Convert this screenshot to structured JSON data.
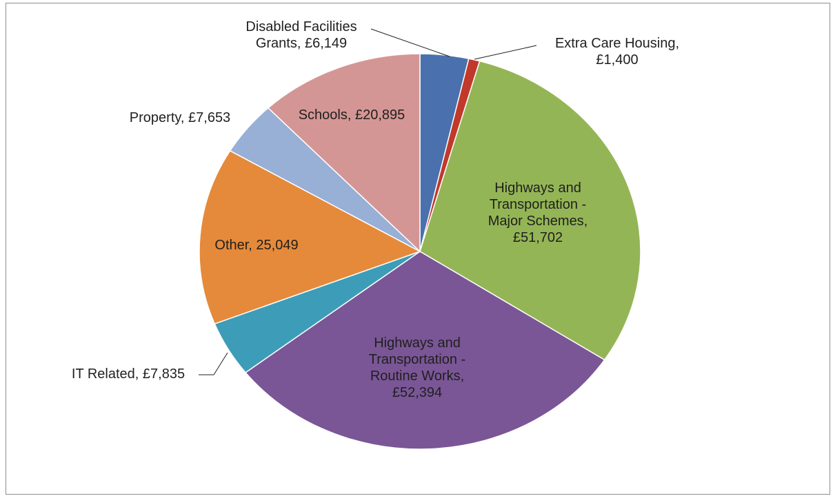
{
  "chart_data": {
    "type": "pie",
    "slices": [
      {
        "name": "Disabled Facilities Grants",
        "value": 6149,
        "color": "#4a71ad",
        "label_lines": [
          "Disabled Facilities",
          "Grants, £6,149"
        ]
      },
      {
        "name": "Extra Care Housing",
        "value": 1400,
        "color": "#c0392b",
        "label_lines": [
          "Extra Care Housing,",
          "£1,400"
        ]
      },
      {
        "name": "Highways and Transportation - Major Schemes",
        "value": 51702,
        "color": "#94b555",
        "label_lines": [
          "Highways and",
          "Transportation -",
          "Major Schemes,",
          "£51,702"
        ]
      },
      {
        "name": "Highways and Transportation - Routine Works",
        "value": 52394,
        "color": "#7a5696",
        "label_lines": [
          "Highways and",
          "Transportation -",
          "Routine Works,",
          "£52,394"
        ]
      },
      {
        "name": "IT Related",
        "value": 7835,
        "color": "#3d9db8",
        "label_lines": [
          "IT Related, £7,835"
        ]
      },
      {
        "name": "Other",
        "value": 25049,
        "color": "#e58a3a",
        "label_lines": [
          "Other, 25,049"
        ]
      },
      {
        "name": "Property",
        "value": 7653,
        "color": "#98afd6",
        "label_lines": [
          "Property, £7,653"
        ]
      },
      {
        "name": "Schools",
        "value": 20895,
        "color": "#d49694",
        "label_lines": [
          "Schools, £20,895"
        ]
      }
    ]
  }
}
